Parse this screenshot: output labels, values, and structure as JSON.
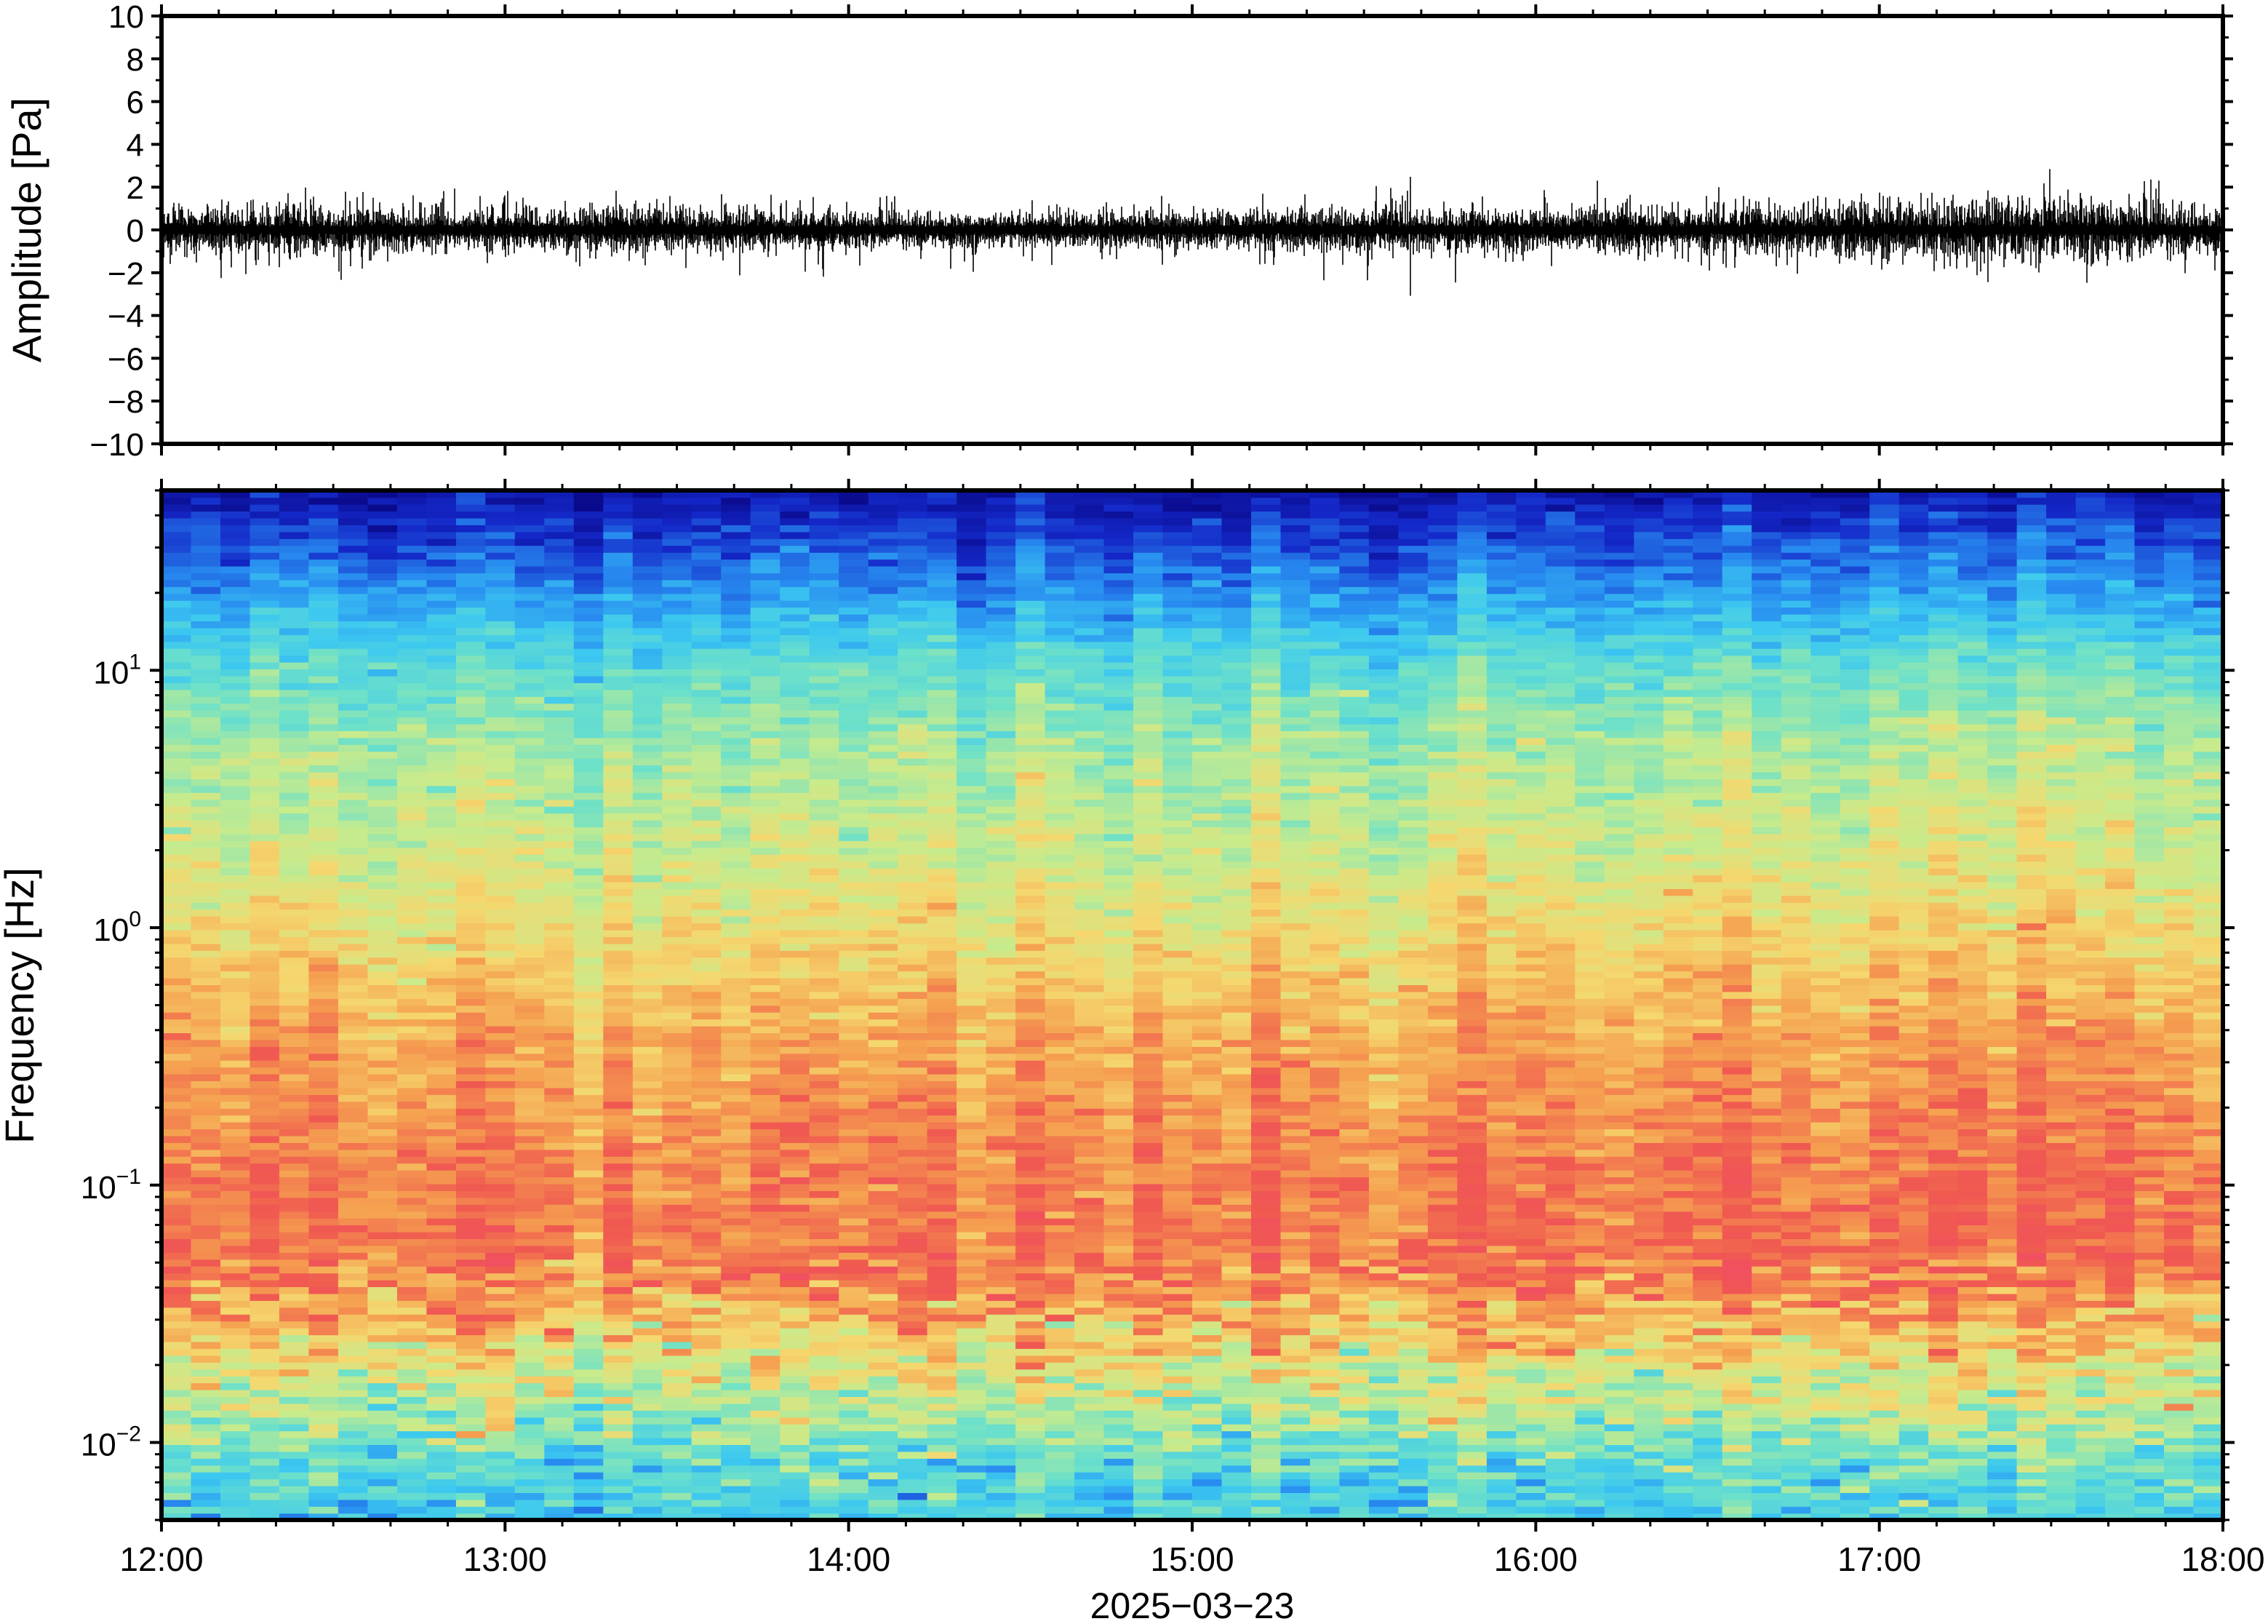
{
  "chart_data": [
    {
      "type": "line",
      "name": "waveform",
      "ylabel": "Amplitude [Pa]",
      "ylim": [
        -10,
        10
      ],
      "yticks": [
        10,
        8,
        6,
        4,
        2,
        0,
        -2,
        -4,
        -6,
        -8,
        -10
      ],
      "ytick_labels": [
        "10",
        "8",
        "6",
        "4",
        "2",
        "0",
        "−2",
        "−4",
        "−6",
        "−8",
        "−10"
      ],
      "xlim": [
        "2025-03-23 12:00",
        "2025-03-23 18:00"
      ],
      "grid": false,
      "envelope": {
        "time": [
          "12:00",
          "12:30",
          "13:00",
          "13:30",
          "14:00",
          "14:30",
          "15:00",
          "15:30",
          "16:00",
          "16:30",
          "17:00",
          "17:30",
          "18:00"
        ],
        "typical_amplitude": [
          1.0,
          1.0,
          0.9,
          0.9,
          0.7,
          0.7,
          0.7,
          0.9,
          0.9,
          0.9,
          1.2,
          1.4,
          1.0
        ],
        "max_peaks": [
          2.2,
          2.1,
          2.0,
          1.8,
          1.7,
          1.4,
          2.4,
          2.3,
          3.0,
          2.1,
          3.2,
          3.0,
          2.0
        ],
        "min_peaks": [
          -2.3,
          -2.6,
          -2.2,
          -2.0,
          -2.4,
          -2.0,
          -1.6,
          -3.6,
          -2.6,
          -2.0,
          -2.8,
          -3.5,
          -2.2
        ]
      }
    },
    {
      "type": "heatmap",
      "name": "spectrogram",
      "ylabel": "Frequency [Hz]",
      "yscale": "log",
      "ylim": [
        0.005,
        50
      ],
      "yticks": [
        0.01,
        0.1,
        1,
        10
      ],
      "ytick_labels": [
        {
          "base": "10",
          "exp": "−2"
        },
        {
          "base": "10",
          "exp": "−1"
        },
        {
          "base": "10",
          "exp": "0"
        },
        {
          "base": "10",
          "exp": "1"
        }
      ],
      "xlabel": "2025−03−23",
      "xlim": [
        "12:00",
        "18:00"
      ],
      "xticks": [
        "12:00",
        "13:00",
        "14:00",
        "15:00",
        "16:00",
        "17:00",
        "18:00"
      ],
      "colormap": "jet",
      "relative_power_profile": {
        "frequency_hz": [
          0.005,
          0.008,
          0.012,
          0.02,
          0.03,
          0.05,
          0.1,
          0.2,
          0.5,
          1,
          2,
          5,
          10,
          20,
          35,
          50
        ],
        "level": [
          0.4,
          0.44,
          0.55,
          0.66,
          0.76,
          0.86,
          0.85,
          0.82,
          0.76,
          0.68,
          0.62,
          0.56,
          0.46,
          0.28,
          0.14,
          0.06
        ]
      },
      "colors": {
        "low": "#0a0a8c",
        "mid": "#63e0c8",
        "high": "#f05050"
      }
    }
  ]
}
